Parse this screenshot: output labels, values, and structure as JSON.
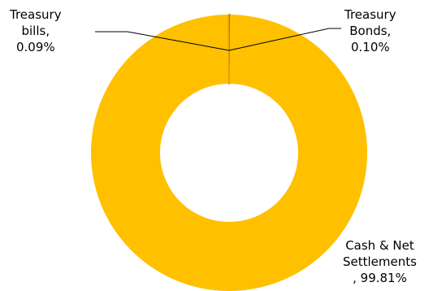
{
  "colors": {
    "slice_main": "#FFC000",
    "slice_small_bonds": "#C00000",
    "slice_small_bills": "#E8A000",
    "leader": "#000000"
  },
  "chart_data": {
    "type": "pie",
    "variant": "donut",
    "series": [
      {
        "labels": [
          "Cash & Net Settlements",
          "Treasury Bonds",
          "Treasury bills"
        ],
        "values": [
          99.81,
          0.1,
          0.09
        ],
        "data_labels": [
          [
            "Cash & Net",
            "Settlements",
            ", 99.81%"
          ],
          [
            "Treasury",
            "Bonds,",
            "0.10%"
          ],
          [
            "Treasury",
            "bills,",
            "0.09%"
          ]
        ]
      }
    ],
    "legend": "none"
  }
}
